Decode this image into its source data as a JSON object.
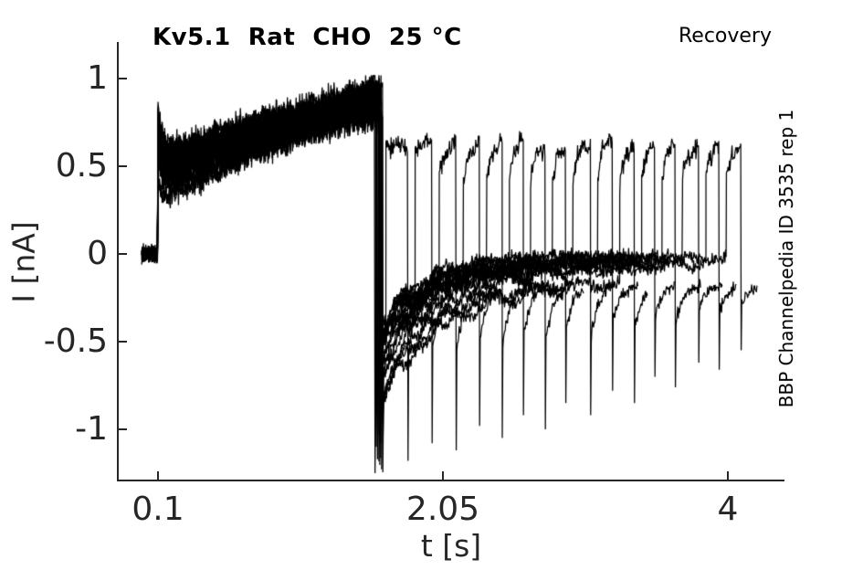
{
  "chart_data": {
    "type": "line",
    "title": "Kv5.1  Rat  CHO  25 °C",
    "protocol_annotation": "Recovery",
    "source_annotation": "BBP Channelpedia ID 3535 rep 1",
    "xlabel": "t [s]",
    "ylabel": "I [nA]",
    "xlim": [
      -0.169,
      4.381
    ],
    "ylim": [
      -1.297,
      1.203
    ],
    "xticks": [
      0.1,
      2.05,
      4
    ],
    "xtick_labels": [
      "0.1",
      "2.05",
      "4"
    ],
    "yticks": [
      1,
      0.5,
      0,
      -0.5,
      -1
    ],
    "ytick_labels": [
      "1",
      "0.5",
      "0",
      "-0.5",
      "-1"
    ],
    "grid": false,
    "legend": "none",
    "line_color": "#000000",
    "axis_color": "#262626",
    "n_sweeps": 20,
    "seed": 1337,
    "baseline": {
      "t_start": -0.012,
      "t_end": 0.1,
      "level": 0,
      "noise_sd": 0.022
    },
    "conditioning_pulse": {
      "t_start": 0.1,
      "t_end": 1.61,
      "start_level_range": [
        0.26,
        0.58
      ],
      "end_level_range": [
        0.78,
        1.0
      ],
      "noise_sd": 0.038,
      "shape_exp": 0.85,
      "onset_overshoot_range": [
        0.08,
        0.38
      ],
      "end_jitter": 0.055
    },
    "conditioning_drop": {
      "t": 1.612,
      "depth_range": [
        -1.25,
        -0.75
      ],
      "first_sweep_depth": -1.25
    },
    "recovery_tail": {
      "offset": -0.025,
      "fast_amp_range": [
        0.35,
        0.6
      ],
      "fast_tau": 0.3,
      "slow_amp_range": [
        0.14,
        0.34
      ],
      "slow_tau": 2.2,
      "wobble_amp_range": [
        0.04,
        0.09
      ],
      "wobble_period_range": [
        0.2,
        0.32
      ],
      "noise_sd": 0.02
    },
    "test_pulses": {
      "boundaries": [
        1.66,
        1.81,
        1.975,
        2.14,
        2.3,
        2.455,
        2.6,
        2.75,
        2.89,
        3.06,
        3.21,
        3.36,
        3.5,
        3.64,
        3.8,
        3.94,
        4.09
      ],
      "gap_before": 0.05,
      "start_levels": [
        0.65,
        0.58,
        0.46,
        0.44,
        0.42,
        0.45,
        0.42,
        0.4,
        0.43,
        0.44,
        0.41,
        0.43,
        0.44,
        0.42,
        0.45,
        0.46
      ],
      "end_levels": [
        0.62,
        0.65,
        0.63,
        0.61,
        0.64,
        0.65,
        0.6,
        0.62,
        0.63,
        0.66,
        0.61,
        0.62,
        0.64,
        0.61,
        0.63,
        0.61
      ],
      "spike_depths": [
        -1.18,
        -1.08,
        -1.12,
        -0.98,
        -1.05,
        -0.92,
        -1.0,
        -0.85,
        -0.92,
        -0.78,
        -0.85,
        -0.7,
        -0.76,
        -0.62,
        -0.66,
        -0.55
      ],
      "noise_sd": 0.028,
      "post_spike_tail_tau": 0.055
    }
  }
}
